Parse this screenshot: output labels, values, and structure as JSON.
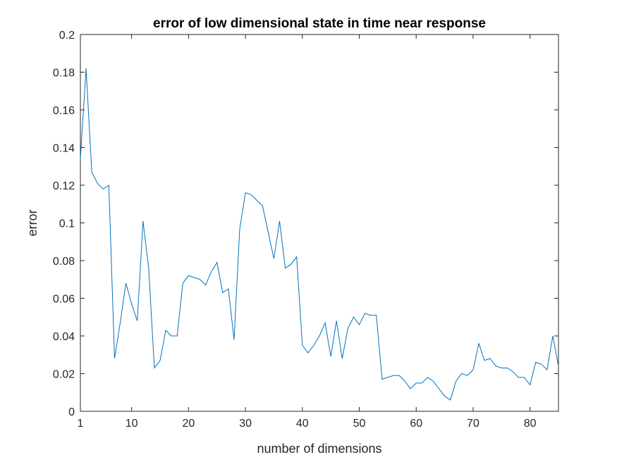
{
  "chart_data": {
    "type": "line",
    "title": "error of low dimensional state in time near response",
    "xlabel": "number of dimensions",
    "ylabel": "error",
    "xlim": [
      1,
      85
    ],
    "ylim": [
      0,
      0.2
    ],
    "xticks": [
      1,
      10,
      20,
      30,
      40,
      50,
      60,
      70,
      80
    ],
    "yticks": [
      0,
      0.02,
      0.04,
      0.06,
      0.08,
      0.1,
      0.12,
      0.14,
      0.16,
      0.18,
      0.2
    ],
    "grid": false,
    "line_color": "#0072BD",
    "x": [
      1,
      2,
      3,
      4,
      5,
      6,
      7,
      8,
      9,
      10,
      11,
      12,
      13,
      14,
      15,
      16,
      17,
      18,
      19,
      20,
      21,
      22,
      23,
      24,
      25,
      26,
      27,
      28,
      29,
      30,
      31,
      32,
      33,
      34,
      35,
      36,
      37,
      38,
      39,
      40,
      41,
      42,
      43,
      44,
      45,
      46,
      47,
      48,
      49,
      50,
      51,
      52,
      53,
      54,
      55,
      56,
      57,
      58,
      59,
      60,
      61,
      62,
      63,
      64,
      65,
      66,
      67,
      68,
      69,
      70,
      71,
      72,
      73,
      74,
      75,
      76,
      77,
      78,
      79,
      80,
      81,
      82,
      83,
      84,
      85
    ],
    "values": [
      0.134,
      0.182,
      0.127,
      0.121,
      0.118,
      0.12,
      0.028,
      0.047,
      0.068,
      0.057,
      0.048,
      0.101,
      0.076,
      0.023,
      0.027,
      0.043,
      0.04,
      0.04,
      0.068,
      0.072,
      0.071,
      0.07,
      0.067,
      0.074,
      0.079,
      0.063,
      0.065,
      0.038,
      0.097,
      0.116,
      0.115,
      0.112,
      0.109,
      0.095,
      0.081,
      0.101,
      0.076,
      0.078,
      0.082,
      0.035,
      0.031,
      0.035,
      0.04,
      0.047,
      0.029,
      0.048,
      0.028,
      0.044,
      0.05,
      0.046,
      0.052,
      0.051,
      0.051,
      0.017,
      0.018,
      0.019,
      0.019,
      0.016,
      0.012,
      0.015,
      0.015,
      0.018,
      0.016,
      0.012,
      0.008,
      0.006,
      0.016,
      0.02,
      0.019,
      0.022,
      0.036,
      0.027,
      0.028,
      0.024,
      0.023,
      0.023,
      0.021,
      0.018,
      0.018,
      0.014,
      0.026,
      0.025,
      0.022,
      0.04,
      0.024
    ]
  }
}
